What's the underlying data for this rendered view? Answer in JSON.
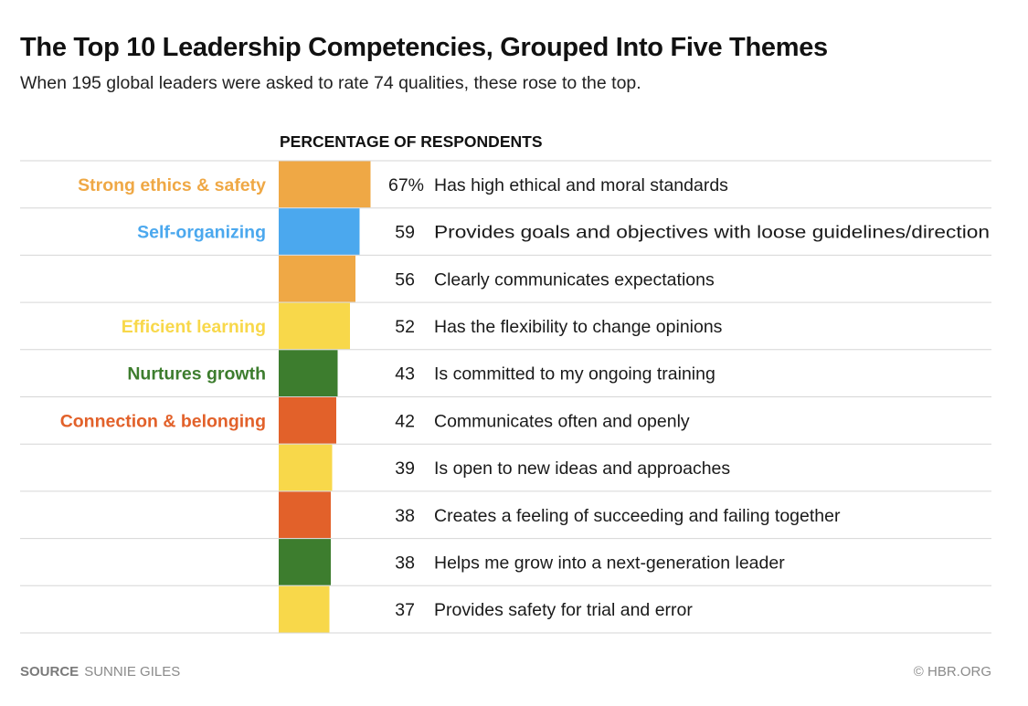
{
  "header": {
    "title": "The Top 10 Leadership Competencies, Grouped Into Five Themes",
    "subtitle": "When 195 global leaders were asked to rate 74 qualities, these rose to the top.",
    "column_header": "PERCENTAGE OF RESPONDENTS"
  },
  "footer": {
    "source_label": "SOURCE",
    "source_name": "SUNNIE GILES",
    "credit": "© HBR.ORG"
  },
  "themes": [
    {
      "name": "Strong ethics & safety",
      "color": "#EFA845"
    },
    {
      "name": "Self-organizing",
      "color": "#4BA8EE"
    },
    {
      "name": "Efficient learning",
      "color": "#F8D84A"
    },
    {
      "name": "Nurtures growth",
      "color": "#3D7D2E"
    },
    {
      "name": "Connection & belonging",
      "color": "#E2612A"
    }
  ],
  "chart_data": {
    "type": "bar",
    "orientation": "horizontal",
    "unit": "%",
    "rows": [
      {
        "value": 67,
        "value_label": "67%",
        "label": "Has high ethical and moral standards",
        "theme": 0,
        "theme_label": "Strong ethics & safety"
      },
      {
        "value": 59,
        "value_label": "59",
        "label": "Provides goals and objectives with loose guidelines/direction",
        "theme": 1,
        "theme_label": "Self-organizing"
      },
      {
        "value": 56,
        "value_label": "56",
        "label": "Clearly communicates expectations",
        "theme": 0,
        "theme_label": ""
      },
      {
        "value": 52,
        "value_label": "52",
        "label": "Has the flexibility to change opinions",
        "theme": 2,
        "theme_label": "Efficient learning"
      },
      {
        "value": 43,
        "value_label": "43",
        "label": "Is committed to my ongoing training",
        "theme": 3,
        "theme_label": "Nurtures growth"
      },
      {
        "value": 42,
        "value_label": "42",
        "label": "Communicates often and openly",
        "theme": 4,
        "theme_label": "Connection & belonging"
      },
      {
        "value": 39,
        "value_label": "39",
        "label": "Is open to new ideas and approaches",
        "theme": 2,
        "theme_label": ""
      },
      {
        "value": 38,
        "value_label": "38",
        "label": "Creates a feeling of succeeding and failing together",
        "theme": 4,
        "theme_label": ""
      },
      {
        "value": 38,
        "value_label": "38",
        "label": "Helps me grow into a next-generation leader",
        "theme": 3,
        "theme_label": ""
      },
      {
        "value": 37,
        "value_label": "37",
        "label": "Provides safety for trial and error",
        "theme": 2,
        "theme_label": ""
      }
    ]
  }
}
